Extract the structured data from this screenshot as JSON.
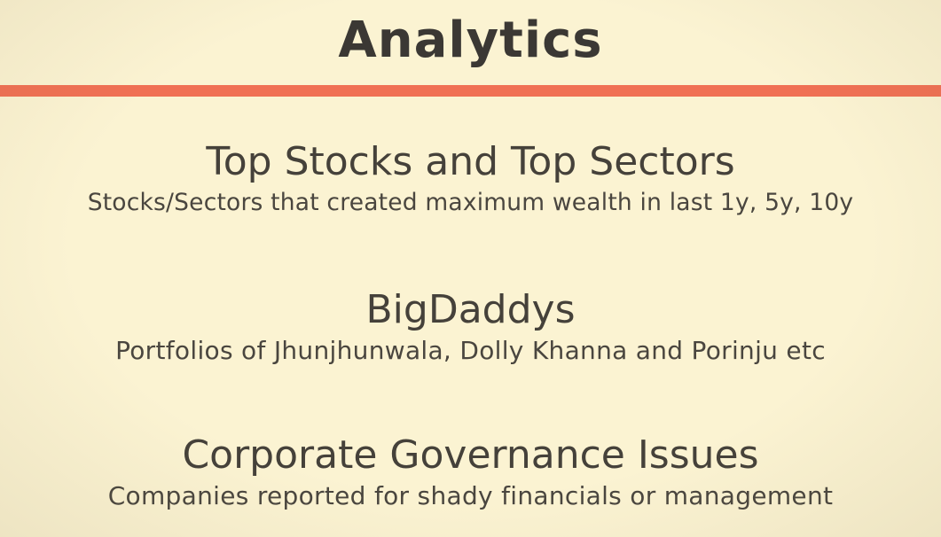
{
  "slide": {
    "title": "Analytics",
    "accent_color": "#f07054",
    "background_color": "#fbf3d2",
    "sections": [
      {
        "heading": "Top Stocks and Top Sectors",
        "description": "Stocks/Sectors that created maximum wealth in last 1y, 5y, 10y"
      },
      {
        "heading": "BigDaddys",
        "description": "Portfolios of Jhunjhunwala, Dolly Khanna and Porinju etc"
      },
      {
        "heading": "Corporate Governance Issues",
        "description": "Companies reported for shady financials or management"
      }
    ]
  }
}
